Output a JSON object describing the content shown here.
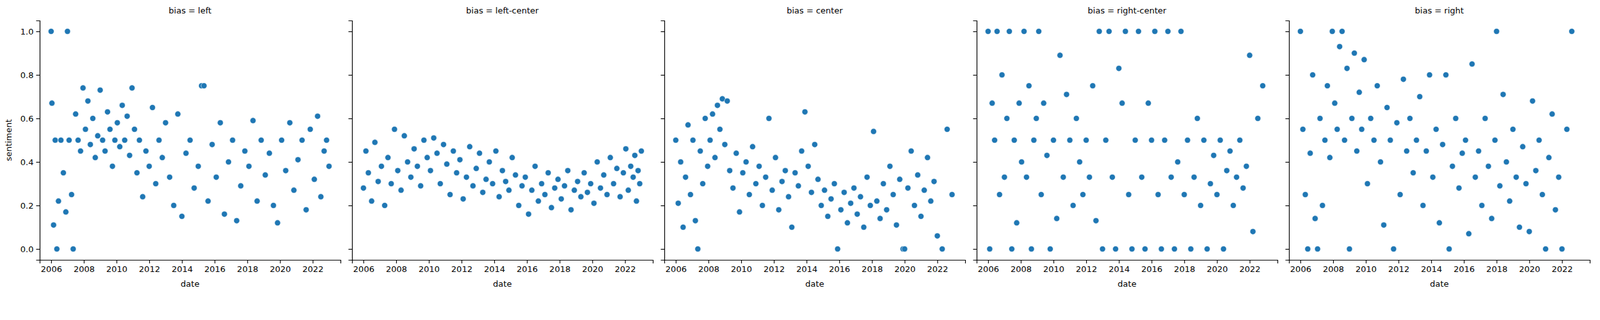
{
  "chart_data": [
    {
      "type": "scatter",
      "title": "bias = left",
      "x_label": "date",
      "y_label": "sentiment",
      "color": "#1f77b4",
      "marker": "circle",
      "xlim": [
        2005.3,
        2023.7
      ],
      "ylim": [
        -0.05,
        1.05
      ],
      "xticks": [
        2006,
        2008,
        2010,
        2012,
        2014,
        2016,
        2018,
        2020,
        2022
      ],
      "yticks": [
        {
          "value": 0,
          "label": "0.0"
        },
        0.2,
        0.4,
        0.6,
        0.8,
        {
          "value": 1,
          "label": "1.0"
        }
      ],
      "x": [
        2006.0,
        2006.05,
        2006.15,
        2006.25,
        2006.35,
        2006.45,
        2006.6,
        2006.75,
        2006.9,
        2007.0,
        2007.1,
        2007.25,
        2007.35,
        2007.5,
        2007.65,
        2007.8,
        2007.95,
        2008.1,
        2008.25,
        2008.4,
        2008.55,
        2008.7,
        2008.85,
        2009.0,
        2009.15,
        2009.3,
        2009.45,
        2009.6,
        2009.75,
        2009.9,
        2010.05,
        2010.2,
        2010.35,
        2010.5,
        2010.65,
        2010.8,
        2010.95,
        2011.1,
        2011.25,
        2011.4,
        2011.6,
        2011.8,
        2012.0,
        2012.2,
        2012.4,
        2012.6,
        2012.8,
        2013.0,
        2013.25,
        2013.5,
        2013.75,
        2014.0,
        2014.25,
        2014.5,
        2014.75,
        2015.0,
        2015.2,
        2015.35,
        2015.6,
        2015.85,
        2016.1,
        2016.35,
        2016.6,
        2016.85,
        2017.1,
        2017.35,
        2017.6,
        2017.85,
        2018.1,
        2018.35,
        2018.6,
        2018.85,
        2019.1,
        2019.35,
        2019.6,
        2019.85,
        2020.1,
        2020.35,
        2020.6,
        2020.85,
        2021.1,
        2021.35,
        2021.6,
        2021.85,
        2022.1,
        2022.3,
        2022.5,
        2022.7,
        2022.85,
        2023.0
      ],
      "values": [
        1.0,
        0.67,
        0.11,
        0.5,
        0.0,
        0.22,
        0.5,
        0.35,
        0.17,
        1.0,
        0.5,
        0.25,
        0.0,
        0.62,
        0.5,
        0.45,
        0.74,
        0.55,
        0.68,
        0.48,
        0.6,
        0.42,
        0.52,
        0.73,
        0.5,
        0.45,
        0.63,
        0.55,
        0.38,
        0.5,
        0.58,
        0.47,
        0.66,
        0.5,
        0.61,
        0.43,
        0.74,
        0.55,
        0.35,
        0.5,
        0.24,
        0.45,
        0.38,
        0.65,
        0.3,
        0.5,
        0.42,
        0.58,
        0.33,
        0.2,
        0.62,
        0.15,
        0.44,
        0.5,
        0.28,
        0.38,
        0.75,
        0.75,
        0.22,
        0.48,
        0.33,
        0.58,
        0.16,
        0.4,
        0.5,
        0.13,
        0.29,
        0.45,
        0.38,
        0.59,
        0.22,
        0.5,
        0.34,
        0.44,
        0.2,
        0.12,
        0.5,
        0.36,
        0.58,
        0.27,
        0.41,
        0.5,
        0.18,
        0.55,
        0.32,
        0.61,
        0.24,
        0.45,
        0.5,
        0.38
      ]
    },
    {
      "type": "scatter",
      "title": "bias = left-center",
      "x_label": "date",
      "color": "#1f77b4",
      "marker": "circle",
      "tick_labels": "x",
      "xlim": [
        2005.3,
        2023.7
      ],
      "ylim": [
        -0.05,
        1.05
      ],
      "xticks": [
        2006,
        2008,
        2010,
        2012,
        2014,
        2016,
        2018,
        2020,
        2022
      ],
      "yticks": [
        0,
        0.2,
        0.4,
        0.6,
        0.8,
        1
      ],
      "x": [
        2006.0,
        2006.15,
        2006.3,
        2006.5,
        2006.7,
        2006.9,
        2007.1,
        2007.3,
        2007.5,
        2007.7,
        2007.9,
        2008.1,
        2008.3,
        2008.5,
        2008.7,
        2008.9,
        2009.1,
        2009.3,
        2009.5,
        2009.7,
        2009.9,
        2010.1,
        2010.3,
        2010.5,
        2010.7,
        2010.9,
        2011.1,
        2011.3,
        2011.5,
        2011.7,
        2011.9,
        2012.1,
        2012.3,
        2012.5,
        2012.7,
        2012.9,
        2013.1,
        2013.3,
        2013.5,
        2013.7,
        2013.9,
        2014.1,
        2014.3,
        2014.5,
        2014.7,
        2014.9,
        2015.1,
        2015.3,
        2015.5,
        2015.7,
        2015.9,
        2016.1,
        2016.3,
        2016.5,
        2016.7,
        2016.9,
        2017.1,
        2017.3,
        2017.5,
        2017.7,
        2017.9,
        2018.1,
        2018.3,
        2018.5,
        2018.7,
        2018.9,
        2019.1,
        2019.3,
        2019.5,
        2019.7,
        2019.9,
        2020.1,
        2020.3,
        2020.5,
        2020.7,
        2020.9,
        2021.1,
        2021.3,
        2021.5,
        2021.7,
        2021.9,
        2022.05,
        2022.2,
        2022.35,
        2022.5,
        2022.6,
        2022.7,
        2022.8,
        2022.9,
        2023.0
      ],
      "values": [
        0.28,
        0.45,
        0.35,
        0.22,
        0.49,
        0.31,
        0.38,
        0.2,
        0.42,
        0.3,
        0.55,
        0.36,
        0.27,
        0.52,
        0.4,
        0.33,
        0.46,
        0.38,
        0.29,
        0.5,
        0.42,
        0.36,
        0.51,
        0.44,
        0.3,
        0.48,
        0.39,
        0.25,
        0.45,
        0.35,
        0.41,
        0.23,
        0.33,
        0.47,
        0.29,
        0.37,
        0.44,
        0.26,
        0.32,
        0.4,
        0.3,
        0.45,
        0.24,
        0.36,
        0.31,
        0.27,
        0.42,
        0.34,
        0.2,
        0.29,
        0.33,
        0.16,
        0.27,
        0.38,
        0.22,
        0.3,
        0.25,
        0.35,
        0.19,
        0.28,
        0.32,
        0.23,
        0.29,
        0.36,
        0.18,
        0.27,
        0.31,
        0.24,
        0.35,
        0.26,
        0.3,
        0.21,
        0.4,
        0.28,
        0.34,
        0.25,
        0.42,
        0.3,
        0.37,
        0.24,
        0.35,
        0.46,
        0.27,
        0.38,
        0.33,
        0.43,
        0.22,
        0.36,
        0.3,
        0.45
      ]
    },
    {
      "type": "scatter",
      "title": "bias = center",
      "x_label": "date",
      "color": "#1f77b4",
      "marker": "circle",
      "tick_labels": "x",
      "xlim": [
        2005.3,
        2023.7
      ],
      "ylim": [
        -0.05,
        1.05
      ],
      "xticks": [
        2006,
        2008,
        2010,
        2012,
        2014,
        2016,
        2018,
        2020,
        2022
      ],
      "yticks": [
        0,
        0.2,
        0.4,
        0.6,
        0.8,
        1
      ],
      "x": [
        2006.0,
        2006.15,
        2006.3,
        2006.45,
        2006.6,
        2006.75,
        2006.9,
        2007.05,
        2007.2,
        2007.35,
        2007.5,
        2007.65,
        2007.8,
        2007.95,
        2008.1,
        2008.25,
        2008.4,
        2008.55,
        2008.7,
        2008.85,
        2009.0,
        2009.15,
        2009.3,
        2009.5,
        2009.7,
        2009.9,
        2010.1,
        2010.3,
        2010.5,
        2010.7,
        2010.9,
        2011.1,
        2011.3,
        2011.5,
        2011.7,
        2011.9,
        2012.1,
        2012.3,
        2012.5,
        2012.7,
        2012.9,
        2013.1,
        2013.3,
        2013.5,
        2013.7,
        2013.9,
        2014.1,
        2014.3,
        2014.5,
        2014.7,
        2014.9,
        2015.1,
        2015.3,
        2015.5,
        2015.7,
        2015.9,
        2016.1,
        2016.3,
        2016.5,
        2016.7,
        2016.9,
        2017.1,
        2017.3,
        2017.5,
        2017.7,
        2017.9,
        2018.1,
        2018.3,
        2018.5,
        2018.7,
        2018.9,
        2019.1,
        2019.3,
        2019.5,
        2019.7,
        2019.9,
        2020.0,
        2020.2,
        2020.4,
        2020.6,
        2020.8,
        2021.0,
        2021.2,
        2021.4,
        2021.6,
        2021.8,
        2022.0,
        2022.3,
        2022.6,
        2022.9
      ],
      "values": [
        0.5,
        0.21,
        0.4,
        0.1,
        0.33,
        0.57,
        0.25,
        0.5,
        0.13,
        0.0,
        0.45,
        0.3,
        0.6,
        0.38,
        0.5,
        0.62,
        0.42,
        0.66,
        0.55,
        0.69,
        0.48,
        0.68,
        0.36,
        0.28,
        0.44,
        0.17,
        0.35,
        0.4,
        0.25,
        0.47,
        0.3,
        0.38,
        0.2,
        0.33,
        0.6,
        0.27,
        0.42,
        0.18,
        0.31,
        0.36,
        0.24,
        0.1,
        0.35,
        0.29,
        0.45,
        0.63,
        0.38,
        0.26,
        0.48,
        0.32,
        0.2,
        0.27,
        0.15,
        0.23,
        0.3,
        0.0,
        0.18,
        0.26,
        0.12,
        0.21,
        0.28,
        0.16,
        0.24,
        0.1,
        0.33,
        0.2,
        0.54,
        0.22,
        0.14,
        0.3,
        0.18,
        0.38,
        0.25,
        0.11,
        0.32,
        0.0,
        0.0,
        0.28,
        0.45,
        0.2,
        0.34,
        0.15,
        0.27,
        0.42,
        0.22,
        0.31,
        0.06,
        0.0,
        0.55,
        0.25
      ]
    },
    {
      "type": "scatter",
      "title": "bias = right-center",
      "x_label": "date",
      "color": "#1f77b4",
      "marker": "circle",
      "tick_labels": "x",
      "xlim": [
        2005.3,
        2023.7
      ],
      "ylim": [
        -0.05,
        1.05
      ],
      "xticks": [
        2006,
        2008,
        2010,
        2012,
        2014,
        2016,
        2018,
        2020,
        2022
      ],
      "yticks": [
        0,
        0.2,
        0.4,
        0.6,
        0.8,
        1
      ],
      "x": [
        2006.0,
        2006.1,
        2006.25,
        2006.4,
        2006.55,
        2006.7,
        2006.85,
        2007.0,
        2007.15,
        2007.3,
        2007.45,
        2007.6,
        2007.75,
        2007.9,
        2008.05,
        2008.2,
        2008.35,
        2008.5,
        2008.65,
        2008.8,
        2008.95,
        2009.1,
        2009.25,
        2009.4,
        2009.6,
        2009.8,
        2010.0,
        2010.2,
        2010.4,
        2010.6,
        2010.8,
        2011.0,
        2011.2,
        2011.4,
        2011.6,
        2011.8,
        2012.0,
        2012.2,
        2012.4,
        2012.6,
        2012.8,
        2013.0,
        2013.2,
        2013.4,
        2013.6,
        2013.8,
        2014.0,
        2014.2,
        2014.4,
        2014.6,
        2014.8,
        2015.0,
        2015.2,
        2015.4,
        2015.6,
        2015.8,
        2016.0,
        2016.2,
        2016.4,
        2016.6,
        2016.8,
        2017.0,
        2017.2,
        2017.4,
        2017.6,
        2017.8,
        2018.0,
        2018.2,
        2018.4,
        2018.6,
        2018.8,
        2019.0,
        2019.2,
        2019.4,
        2019.6,
        2019.8,
        2020.0,
        2020.2,
        2020.4,
        2020.6,
        2020.8,
        2021.0,
        2021.2,
        2021.4,
        2021.6,
        2021.8,
        2022.0,
        2022.2,
        2022.5,
        2022.8
      ],
      "values": [
        1.0,
        0.0,
        0.67,
        0.5,
        1.0,
        0.25,
        0.8,
        0.33,
        0.6,
        1.0,
        0.0,
        0.5,
        0.12,
        0.67,
        0.4,
        1.0,
        0.33,
        0.75,
        0.0,
        0.5,
        0.6,
        1.0,
        0.25,
        0.67,
        0.43,
        0.0,
        0.5,
        0.14,
        0.89,
        0.33,
        0.71,
        0.5,
        0.2,
        0.6,
        0.4,
        0.25,
        0.5,
        0.33,
        0.75,
        0.13,
        1.0,
        0.0,
        0.5,
        1.0,
        0.33,
        0.0,
        0.83,
        0.67,
        1.0,
        0.25,
        0.0,
        0.5,
        1.0,
        0.33,
        0.0,
        0.67,
        0.5,
        1.0,
        0.25,
        0.0,
        0.5,
        1.0,
        0.33,
        0.0,
        0.4,
        1.0,
        0.25,
        0.5,
        0.0,
        0.33,
        0.6,
        0.2,
        0.5,
        0.0,
        0.3,
        0.43,
        0.25,
        0.5,
        0.0,
        0.36,
        0.45,
        0.2,
        0.33,
        0.5,
        0.28,
        0.38,
        0.89,
        0.08,
        0.6,
        0.75
      ]
    },
    {
      "type": "scatter",
      "title": "bias = right",
      "x_label": "date",
      "color": "#1f77b4",
      "marker": "circle",
      "tick_labels": "x",
      "xlim": [
        2005.3,
        2023.7
      ],
      "ylim": [
        -0.05,
        1.05
      ],
      "xticks": [
        2006,
        2008,
        2010,
        2012,
        2014,
        2016,
        2018,
        2020,
        2022
      ],
      "yticks": [
        0,
        0.2,
        0.4,
        0.6,
        0.8,
        1
      ],
      "x": [
        2006.0,
        2006.15,
        2006.3,
        2006.45,
        2006.6,
        2006.75,
        2006.9,
        2007.05,
        2007.2,
        2007.35,
        2007.5,
        2007.65,
        2007.8,
        2007.95,
        2008.1,
        2008.25,
        2008.4,
        2008.55,
        2008.7,
        2008.85,
        2009.0,
        2009.15,
        2009.3,
        2009.45,
        2009.6,
        2009.75,
        2009.9,
        2010.1,
        2010.3,
        2010.5,
        2010.7,
        2010.9,
        2011.1,
        2011.3,
        2011.5,
        2011.7,
        2011.9,
        2012.1,
        2012.3,
        2012.5,
        2012.7,
        2012.9,
        2013.1,
        2013.3,
        2013.5,
        2013.7,
        2013.9,
        2014.1,
        2014.3,
        2014.5,
        2014.7,
        2014.9,
        2015.1,
        2015.3,
        2015.5,
        2015.7,
        2015.9,
        2016.1,
        2016.3,
        2016.5,
        2016.7,
        2016.9,
        2017.1,
        2017.3,
        2017.5,
        2017.7,
        2017.9,
        2018.0,
        2018.2,
        2018.4,
        2018.6,
        2018.8,
        2019.0,
        2019.2,
        2019.4,
        2019.6,
        2019.8,
        2020.0,
        2020.2,
        2020.4,
        2020.6,
        2020.8,
        2021.0,
        2021.2,
        2021.4,
        2021.6,
        2021.8,
        2022.0,
        2022.3,
        2022.6
      ],
      "values": [
        1.0,
        0.55,
        0.25,
        0.0,
        0.44,
        0.8,
        0.14,
        0.0,
        0.6,
        0.2,
        0.5,
        0.75,
        0.42,
        1.0,
        0.67,
        0.55,
        0.93,
        1.0,
        0.5,
        0.83,
        0.0,
        0.6,
        0.9,
        0.45,
        0.72,
        0.55,
        0.87,
        0.3,
        0.6,
        0.5,
        0.75,
        0.4,
        0.11,
        0.65,
        0.5,
        0.0,
        0.58,
        0.25,
        0.78,
        0.45,
        0.6,
        0.35,
        0.5,
        0.7,
        0.2,
        0.45,
        0.8,
        0.33,
        0.55,
        0.12,
        0.48,
        0.8,
        0.0,
        0.38,
        0.6,
        0.28,
        0.44,
        0.5,
        0.07,
        0.85,
        0.33,
        0.45,
        0.2,
        0.6,
        0.38,
        0.14,
        0.5,
        1.0,
        0.29,
        0.71,
        0.4,
        0.22,
        0.55,
        0.33,
        0.1,
        0.47,
        0.3,
        0.08,
        0.68,
        0.36,
        0.5,
        0.25,
        0.0,
        0.42,
        0.62,
        0.18,
        0.33,
        0.0,
        0.55,
        1.0
      ]
    }
  ]
}
